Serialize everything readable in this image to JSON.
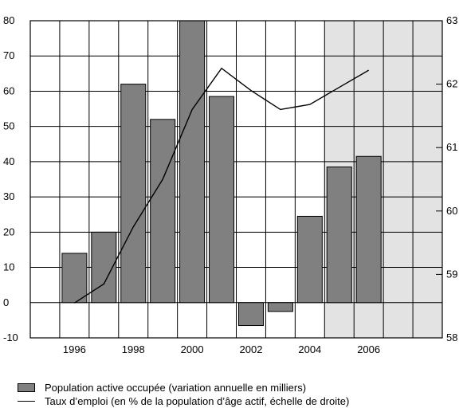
{
  "chart_data": {
    "type": "bar",
    "x": [
      1995,
      1996,
      1997,
      1998,
      1999,
      2000,
      2001,
      2002,
      2003,
      2004,
      2005,
      2006,
      2007,
      2008
    ],
    "series": [
      {
        "name": "Population active occupée (variation annuelle en milliers)",
        "type": "bar",
        "axis": "left",
        "x": [
          1996,
          1997,
          1998,
          1999,
          2000,
          2001,
          2002,
          2003,
          2004,
          2005,
          2006
        ],
        "values": [
          14,
          20,
          62,
          52,
          80,
          58.5,
          -6.5,
          -2.5,
          24.5,
          38.5,
          41.5
        ]
      },
      {
        "name": "Taux d’emploi (en % de la population d’âge actif, échelle de droite)",
        "type": "line",
        "axis": "right",
        "x": [
          1996,
          1997,
          1998,
          1999,
          2000,
          2001,
          2002,
          2003,
          2004,
          2005,
          2006
        ],
        "values": [
          58.55,
          58.85,
          59.75,
          60.5,
          61.6,
          62.25,
          61.9,
          61.6,
          61.68,
          61.95,
          62.22
        ]
      }
    ],
    "ylim": [
      -10,
      80
    ],
    "yticks": [
      -10,
      0,
      10,
      20,
      30,
      40,
      50,
      60,
      70,
      80
    ],
    "ylim_right": [
      58,
      63
    ],
    "yticks_right": [
      58,
      59,
      60,
      61,
      62,
      63
    ],
    "xlim": [
      1994.5,
      2008.5
    ],
    "xticks": [
      1996,
      1998,
      2000,
      2002,
      2004,
      2006
    ],
    "shaded_region": [
      2004.5,
      2008.5
    ],
    "grid": true,
    "colors": {
      "bar": "#808080",
      "shade": "#e3e3e3",
      "line": "#000000"
    },
    "legend_position": "bottom"
  }
}
